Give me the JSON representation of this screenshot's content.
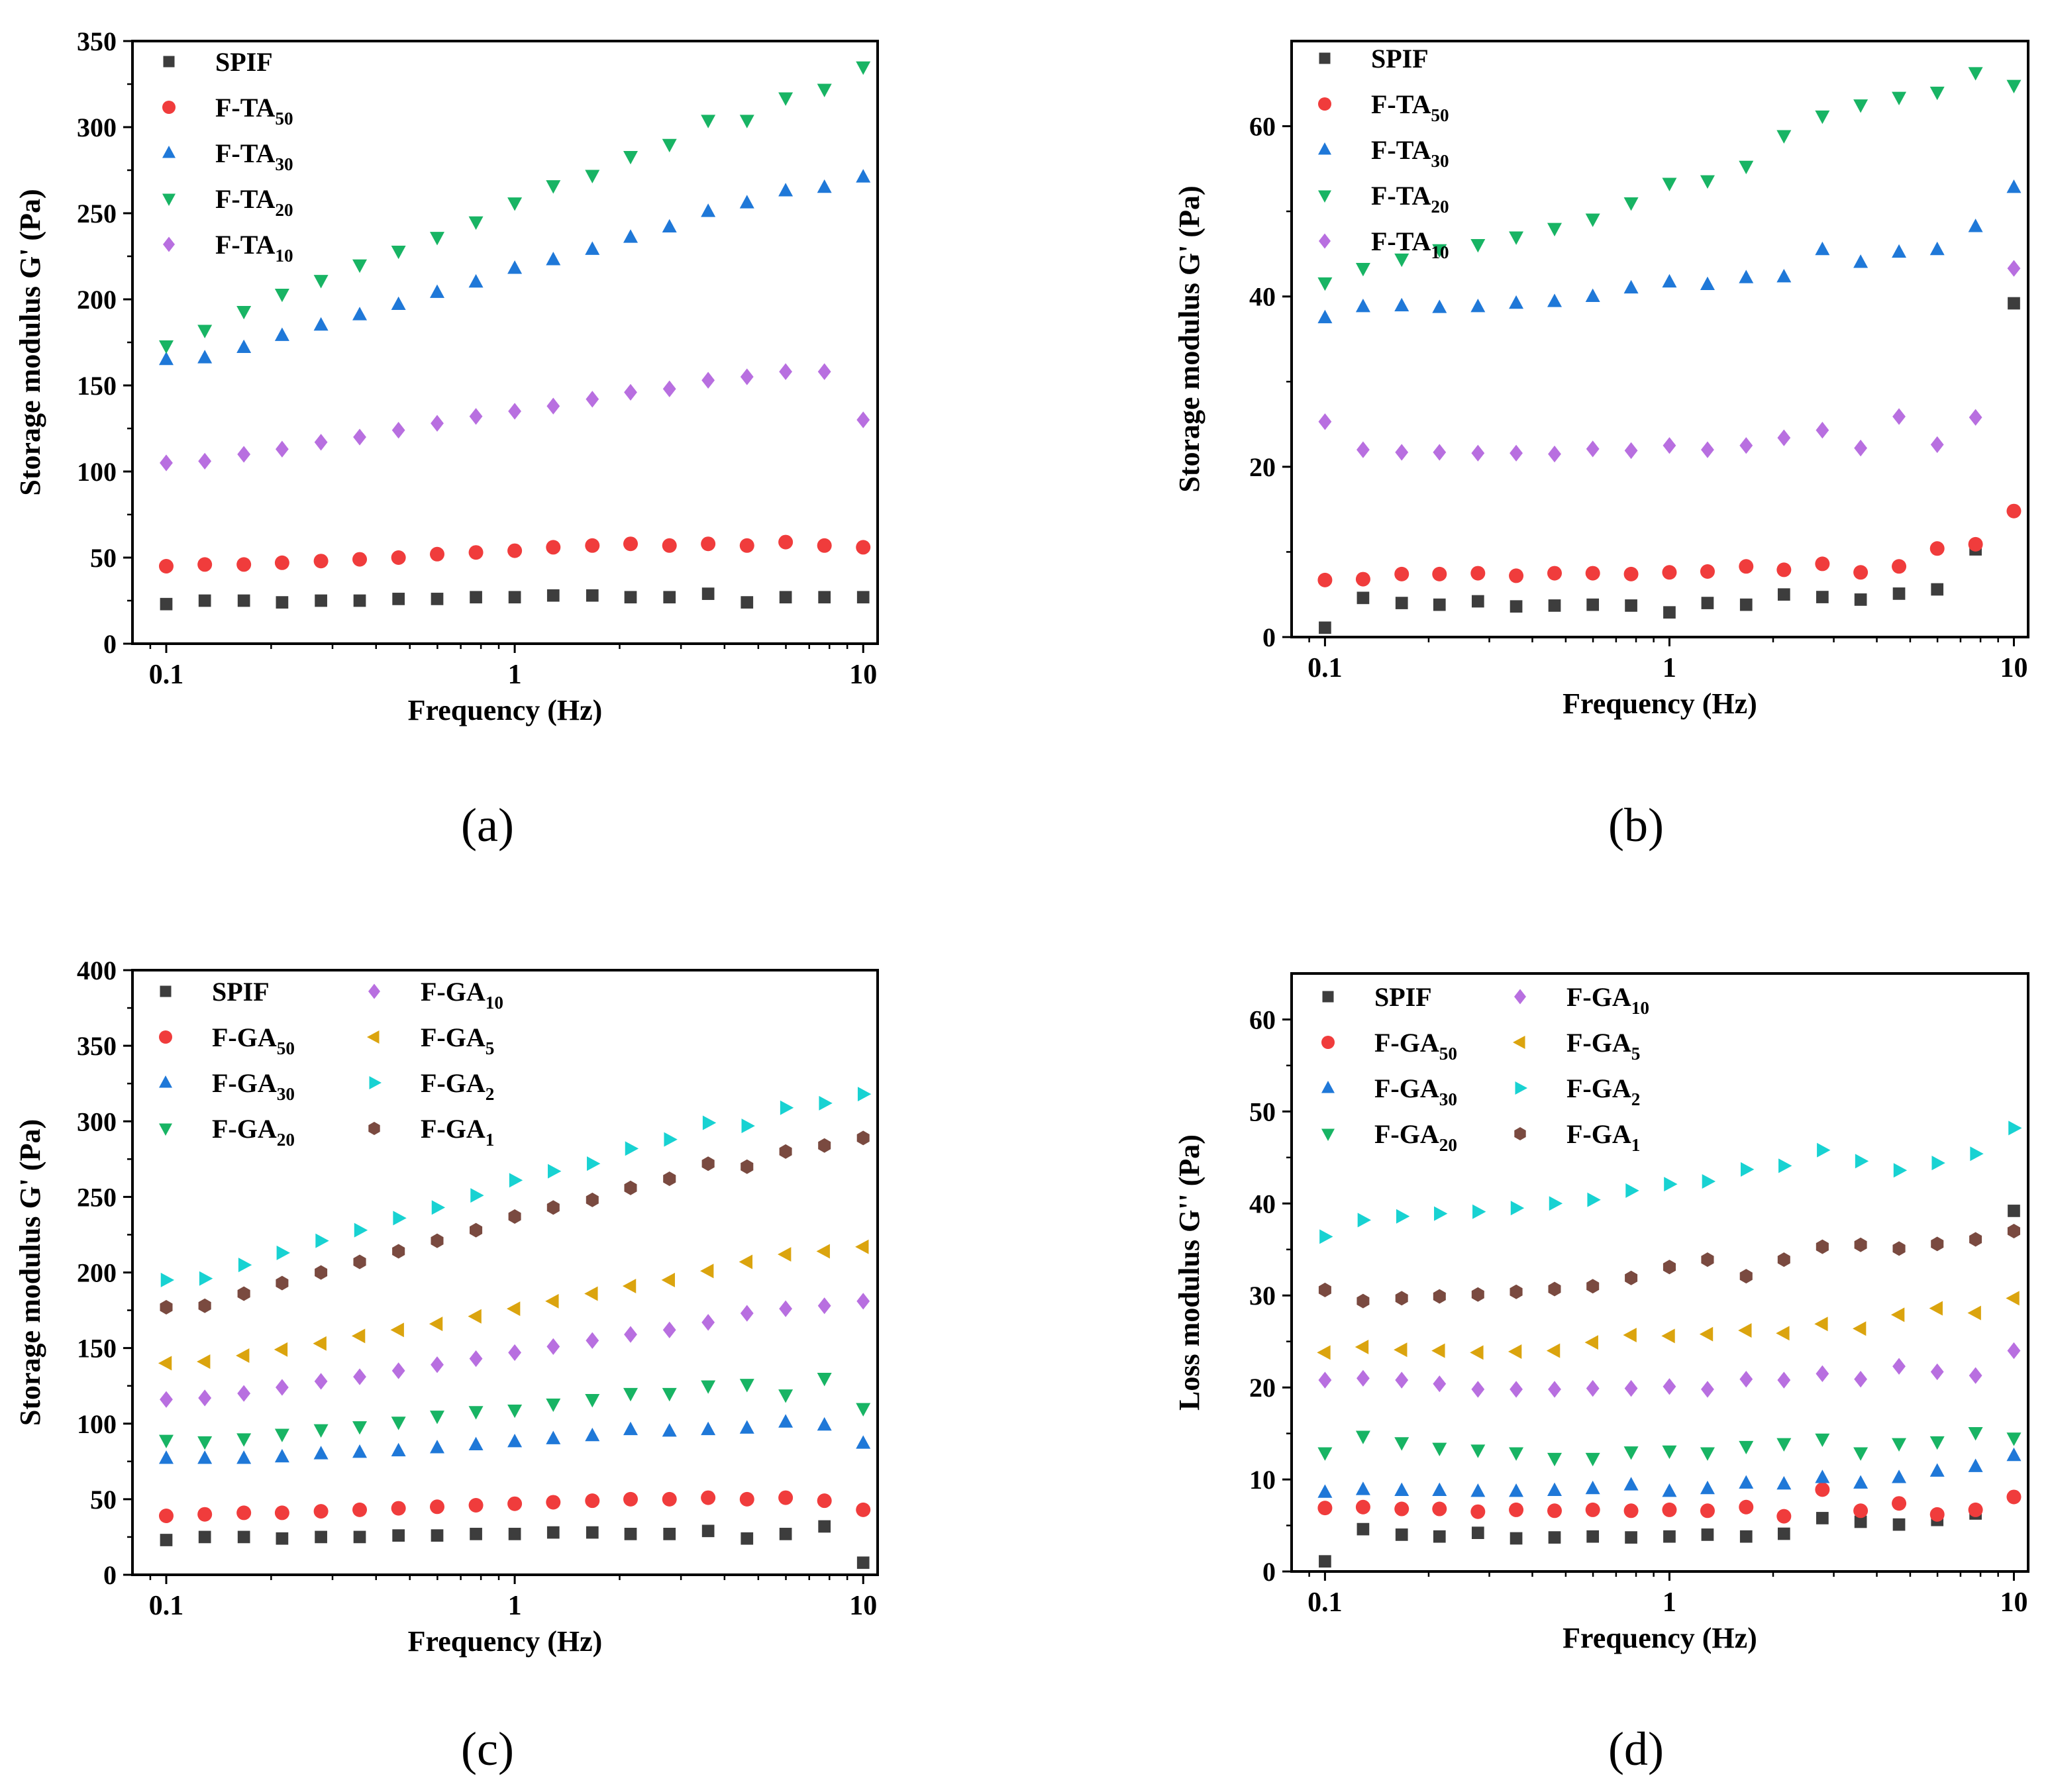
{
  "chart_data": [
    {
      "panel": "(a)",
      "type": "scatter",
      "title": "",
      "xlabel": "Frequency (Hz)",
      "ylabel": "Storage modulus G' (Pa)",
      "xscale": "log",
      "xlim": [
        0.08,
        11
      ],
      "ylim": [
        0,
        350
      ],
      "xticks": [
        0.1,
        1,
        10
      ],
      "xtick_labels": [
        "0.1",
        "1",
        "10"
      ],
      "yticks": [
        0,
        50,
        100,
        150,
        200,
        250,
        300,
        350
      ],
      "ytick_labels": [
        "0",
        "50",
        "100",
        "150",
        "200",
        "250",
        "300",
        "350"
      ],
      "legend_placement": "top-left",
      "legend_columns": 1,
      "grid": false,
      "x": [
        0.1,
        0.129,
        0.167,
        0.215,
        0.278,
        0.359,
        0.464,
        0.599,
        0.774,
        1.0,
        1.29,
        1.67,
        2.15,
        2.78,
        3.59,
        4.64,
        5.99,
        7.74,
        10.0
      ],
      "series": [
        {
          "name": "SPIF",
          "base": "SPIF",
          "sub": "",
          "marker": "square",
          "color": "#3d3d3d",
          "values": [
            23,
            25,
            25,
            24,
            25,
            25,
            26,
            26,
            27,
            27,
            28,
            28,
            27,
            27,
            29,
            24,
            27,
            27,
            27
          ]
        },
        {
          "name": "F-TA50",
          "base": "F-TA",
          "sub": "50",
          "marker": "circle",
          "color": "#f03c3c",
          "values": [
            45,
            46,
            46,
            47,
            48,
            49,
            50,
            52,
            53,
            54,
            56,
            57,
            58,
            57,
            58,
            57,
            59,
            57,
            56
          ]
        },
        {
          "name": "F-TA30",
          "base": "F-TA",
          "sub": "30",
          "marker": "triangle-up",
          "color": "#1f78d8",
          "values": [
            165,
            166,
            172,
            179,
            185,
            191,
            197,
            204,
            210,
            218,
            223,
            229,
            236,
            242,
            251,
            256,
            263,
            265,
            271
          ]
        },
        {
          "name": "F-TA20",
          "base": "F-TA",
          "sub": "20",
          "marker": "triangle-down",
          "color": "#18b464",
          "values": [
            173,
            182,
            193,
            203,
            211,
            220,
            228,
            236,
            245,
            256,
            266,
            272,
            283,
            290,
            304,
            304,
            317,
            322,
            335
          ]
        },
        {
          "name": "F-TA10",
          "base": "F-TA",
          "sub": "10",
          "marker": "diamond",
          "color": "#b86fe0",
          "values": [
            105,
            106,
            110,
            113,
            117,
            120,
            124,
            128,
            132,
            135,
            138,
            142,
            146,
            148,
            153,
            155,
            158,
            158,
            130
          ]
        }
      ]
    },
    {
      "panel": "(b)",
      "type": "scatter",
      "title": "",
      "xlabel": "Frequency (Hz)",
      "ylabel": "Storage modulus G' (Pa)",
      "xscale": "log",
      "xlim": [
        0.08,
        11
      ],
      "ylim": [
        0,
        70
      ],
      "xticks": [
        0.1,
        1,
        10
      ],
      "xtick_labels": [
        "0.1",
        "1",
        "10"
      ],
      "yticks": [
        0,
        20,
        40,
        60
      ],
      "ytick_labels": [
        "0",
        "20",
        "40",
        "60"
      ],
      "legend_placement": "top-left",
      "legend_columns": 1,
      "grid": false,
      "x": [
        0.1,
        0.129,
        0.167,
        0.215,
        0.278,
        0.359,
        0.464,
        0.599,
        0.774,
        1.0,
        1.29,
        1.67,
        2.15,
        2.78,
        3.59,
        4.64,
        5.99,
        7.74,
        10.0
      ],
      "series": [
        {
          "name": "SPIF",
          "base": "SPIF",
          "sub": "",
          "marker": "square",
          "color": "#3d3d3d",
          "values": [
            1.1,
            4.6,
            4.0,
            3.8,
            4.2,
            3.6,
            3.7,
            3.8,
            3.7,
            2.9,
            4.0,
            3.8,
            5.0,
            4.7,
            4.4,
            5.1,
            5.6,
            10.3,
            39.2
          ]
        },
        {
          "name": "F-TA50",
          "base": "F-TA",
          "sub": "50",
          "marker": "circle",
          "color": "#f03c3c",
          "values": [
            6.7,
            6.8,
            7.4,
            7.4,
            7.5,
            7.2,
            7.5,
            7.5,
            7.4,
            7.6,
            7.7,
            8.3,
            7.9,
            8.6,
            7.6,
            8.3,
            10.4,
            10.9,
            14.8
          ]
        },
        {
          "name": "F-TA30",
          "base": "F-TA",
          "sub": "30",
          "marker": "triangle-up",
          "color": "#1f78d8",
          "values": [
            37.5,
            38.8,
            38.9,
            38.7,
            38.8,
            39.2,
            39.4,
            40.0,
            41.0,
            41.7,
            41.4,
            42.2,
            42.3,
            45.5,
            44.0,
            45.2,
            45.5,
            48.2,
            52.8
          ]
        },
        {
          "name": "F-TA20",
          "base": "F-TA",
          "sub": "20",
          "marker": "triangle-down",
          "color": "#18b464",
          "values": [
            41.6,
            43.3,
            44.4,
            45.5,
            46.1,
            47.0,
            48.0,
            49.1,
            51.0,
            53.3,
            53.6,
            55.3,
            58.9,
            61.2,
            62.5,
            63.4,
            64.0,
            66.3,
            64.8
          ]
        },
        {
          "name": "F-TA10",
          "base": "F-TA",
          "sub": "10",
          "marker": "diamond",
          "color": "#b86fe0",
          "values": [
            25.3,
            22.0,
            21.7,
            21.7,
            21.6,
            21.6,
            21.5,
            22.1,
            21.9,
            22.5,
            22.0,
            22.5,
            23.4,
            24.3,
            22.2,
            25.9,
            22.6,
            25.8,
            43.3
          ]
        }
      ]
    },
    {
      "panel": "(c)",
      "type": "scatter",
      "title": "",
      "xlabel": "Frequency (Hz)",
      "ylabel": "Storage modulus G' (Pa)",
      "xscale": "log",
      "xlim": [
        0.08,
        11
      ],
      "ylim": [
        0,
        400
      ],
      "xticks": [
        0.1,
        1,
        10
      ],
      "xtick_labels": [
        "0.1",
        "1",
        "10"
      ],
      "yticks": [
        0,
        50,
        100,
        150,
        200,
        250,
        300,
        350,
        400
      ],
      "ytick_labels": [
        "0",
        "50",
        "100",
        "150",
        "200",
        "250",
        "300",
        "350",
        "400"
      ],
      "legend_placement": "top-left",
      "legend_columns": 2,
      "grid": false,
      "x": [
        0.1,
        0.129,
        0.167,
        0.215,
        0.278,
        0.359,
        0.464,
        0.599,
        0.774,
        1.0,
        1.29,
        1.67,
        2.15,
        2.78,
        3.59,
        4.64,
        5.99,
        7.74,
        10.0
      ],
      "series": [
        {
          "name": "SPIF",
          "base": "SPIF",
          "sub": "",
          "marker": "square",
          "color": "#3d3d3d",
          "values": [
            23,
            25,
            25,
            24,
            25,
            25,
            26,
            26,
            27,
            27,
            28,
            28,
            27,
            27,
            29,
            24,
            27,
            32,
            8
          ]
        },
        {
          "name": "F-GA50",
          "base": "F-GA",
          "sub": "50",
          "marker": "circle",
          "color": "#f03c3c",
          "values": [
            39,
            40,
            41,
            41,
            42,
            43,
            44,
            45,
            46,
            47,
            48,
            49,
            50,
            50,
            51,
            50,
            51,
            49,
            43
          ]
        },
        {
          "name": "F-GA30",
          "base": "F-GA",
          "sub": "30",
          "marker": "triangle-up",
          "color": "#1f78d8",
          "values": [
            77,
            77,
            77,
            78,
            80,
            81,
            82,
            84,
            86,
            88,
            90,
            92,
            96,
            95,
            96,
            97,
            101,
            99,
            87
          ]
        },
        {
          "name": "F-GA20",
          "base": "F-GA",
          "sub": "20",
          "marker": "triangle-down",
          "color": "#18b464",
          "values": [
            89,
            88,
            90,
            93,
            96,
            98,
            101,
            105,
            108,
            109,
            113,
            116,
            120,
            120,
            125,
            126,
            119,
            130,
            110
          ]
        },
        {
          "name": "F-GA10",
          "base": "F-GA",
          "sub": "10",
          "marker": "diamond",
          "color": "#b86fe0",
          "values": [
            116,
            117,
            120,
            124,
            128,
            131,
            135,
            139,
            143,
            147,
            151,
            155,
            159,
            162,
            167,
            173,
            176,
            178,
            181
          ]
        },
        {
          "name": "F-GA5",
          "base": "F-GA",
          "sub": "5",
          "marker": "triangle-left",
          "color": "#dba40e",
          "values": [
            140,
            141,
            145,
            149,
            153,
            158,
            162,
            166,
            171,
            176,
            181,
            186,
            191,
            195,
            201,
            207,
            212,
            214,
            217
          ]
        },
        {
          "name": "F-GA2",
          "base": "F-GA",
          "sub": "2",
          "marker": "triangle-right",
          "color": "#18d2d2",
          "values": [
            195,
            196,
            205,
            213,
            221,
            228,
            236,
            243,
            251,
            261,
            267,
            272,
            282,
            288,
            299,
            297,
            309,
            312,
            318
          ]
        },
        {
          "name": "F-GA1",
          "base": "F-GA",
          "sub": "1",
          "marker": "hexagon",
          "color": "#7a4a40",
          "values": [
            177,
            178,
            186,
            193,
            200,
            207,
            214,
            221,
            228,
            237,
            243,
            248,
            256,
            262,
            272,
            270,
            280,
            284,
            289
          ]
        }
      ]
    },
    {
      "panel": "(d)",
      "type": "scatter",
      "title": "",
      "xlabel": "Frequency (Hz)",
      "ylabel": "Loss modulus G'' (Pa)",
      "xscale": "log",
      "xlim": [
        0.08,
        11
      ],
      "ylim": [
        0,
        65
      ],
      "xticks": [
        0.1,
        1,
        10
      ],
      "xtick_labels": [
        "0.1",
        "1",
        "10"
      ],
      "yticks": [
        0,
        10,
        20,
        30,
        40,
        50,
        60
      ],
      "ytick_labels": [
        "0",
        "10",
        "20",
        "30",
        "40",
        "50",
        "60"
      ],
      "legend_placement": "top-left",
      "legend_columns": 2,
      "grid": false,
      "x": [
        0.1,
        0.129,
        0.167,
        0.215,
        0.278,
        0.359,
        0.464,
        0.599,
        0.774,
        1.0,
        1.29,
        1.67,
        2.15,
        2.78,
        3.59,
        4.64,
        5.99,
        7.74,
        10.0
      ],
      "series": [
        {
          "name": "SPIF",
          "base": "SPIF",
          "sub": "",
          "marker": "square",
          "color": "#3d3d3d",
          "values": [
            1.1,
            4.6,
            4.0,
            3.8,
            4.2,
            3.6,
            3.7,
            3.8,
            3.7,
            3.8,
            4.0,
            3.8,
            4.1,
            5.8,
            5.4,
            5.1,
            5.6,
            6.3,
            39.2
          ]
        },
        {
          "name": "F-GA50",
          "base": "F-GA",
          "sub": "50",
          "marker": "circle",
          "color": "#f03c3c",
          "values": [
            6.9,
            7.0,
            6.8,
            6.8,
            6.5,
            6.7,
            6.6,
            6.7,
            6.6,
            6.7,
            6.6,
            7.0,
            6.0,
            8.9,
            6.6,
            7.4,
            6.2,
            6.7,
            8.1
          ]
        },
        {
          "name": "F-GA30",
          "base": "F-GA",
          "sub": "30",
          "marker": "triangle-up",
          "color": "#1f78d8",
          "values": [
            8.6,
            8.9,
            8.8,
            8.8,
            8.7,
            8.7,
            8.8,
            9.0,
            9.4,
            8.7,
            9.0,
            9.6,
            9.5,
            10.2,
            9.6,
            10.2,
            10.9,
            11.4,
            12.6
          ]
        },
        {
          "name": "F-GA20",
          "base": "F-GA",
          "sub": "20",
          "marker": "triangle-down",
          "color": "#18b464",
          "values": [
            12.9,
            14.7,
            14.0,
            13.4,
            13.2,
            12.9,
            12.3,
            12.3,
            13.0,
            13.1,
            12.9,
            13.6,
            13.9,
            14.4,
            12.9,
            13.9,
            14.1,
            15.1,
            14.5
          ]
        },
        {
          "name": "F-GA10",
          "base": "F-GA",
          "sub": "10",
          "marker": "diamond",
          "color": "#b86fe0",
          "values": [
            20.8,
            21.0,
            20.8,
            20.4,
            19.8,
            19.8,
            19.8,
            19.9,
            19.9,
            20.1,
            19.8,
            20.9,
            20.8,
            21.5,
            20.9,
            22.3,
            21.7,
            21.3,
            24.0
          ]
        },
        {
          "name": "F-GA5",
          "base": "F-GA",
          "sub": "5",
          "marker": "triangle-left",
          "color": "#dba40e",
          "values": [
            23.8,
            24.4,
            24.1,
            24.0,
            23.8,
            23.9,
            24.0,
            24.9,
            25.7,
            25.6,
            25.8,
            26.2,
            25.9,
            26.9,
            26.4,
            27.9,
            28.6,
            28.1,
            29.7
          ]
        },
        {
          "name": "F-GA2",
          "base": "F-GA",
          "sub": "2",
          "marker": "triangle-right",
          "color": "#18d2d2",
          "values": [
            36.4,
            38.2,
            38.6,
            38.9,
            39.1,
            39.5,
            40.0,
            40.4,
            41.4,
            42.1,
            42.4,
            43.7,
            44.1,
            45.8,
            44.6,
            43.6,
            44.4,
            45.4,
            48.2
          ]
        },
        {
          "name": "F-GA1",
          "base": "F-GA",
          "sub": "1",
          "marker": "hexagon",
          "color": "#7a4a40",
          "values": [
            30.6,
            29.4,
            29.7,
            29.9,
            30.1,
            30.4,
            30.7,
            31.0,
            31.9,
            33.1,
            33.9,
            32.1,
            33.9,
            35.3,
            35.5,
            35.1,
            35.6,
            36.1,
            37.0
          ]
        }
      ]
    }
  ]
}
